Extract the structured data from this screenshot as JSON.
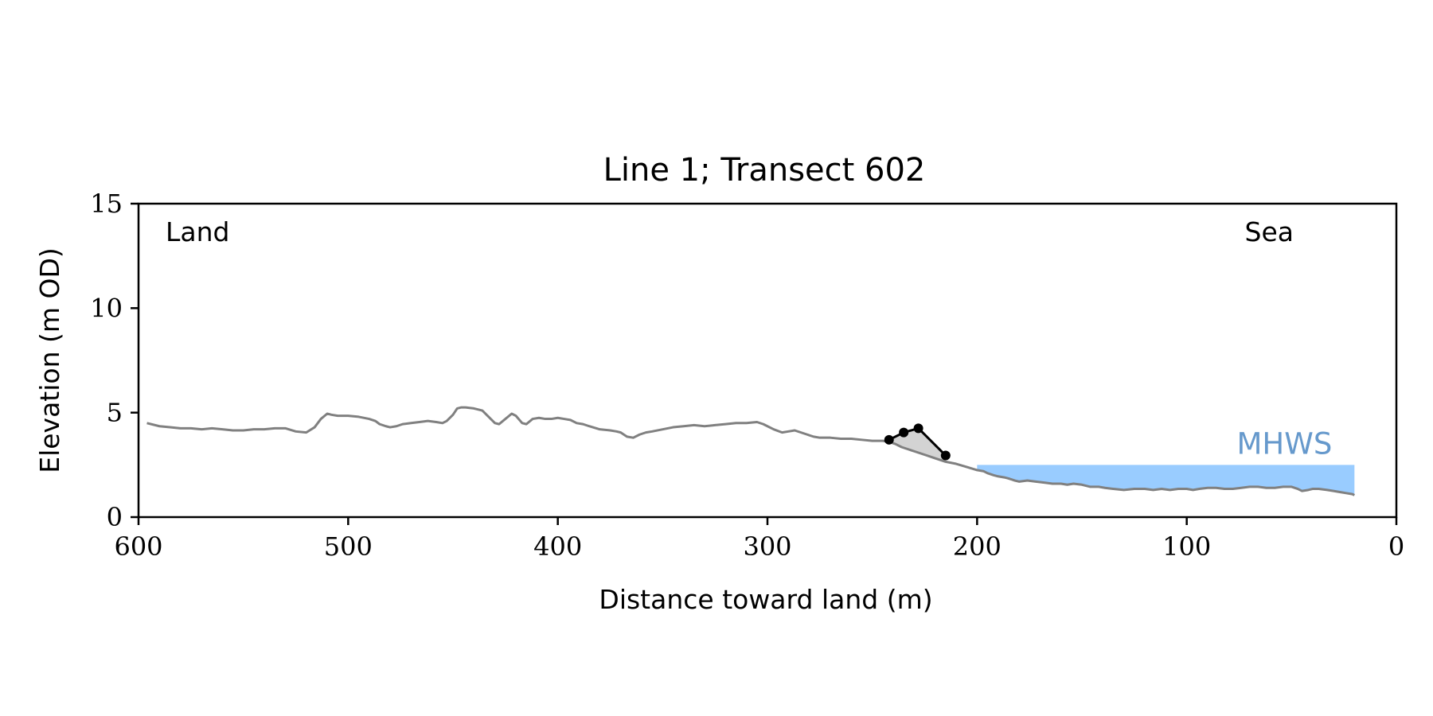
{
  "chart_data": {
    "type": "line",
    "title": "Line 1; Transect 602",
    "xlabel": "Distance toward land (m)",
    "ylabel": "Elevation (m OD)",
    "xlim": [
      600,
      0
    ],
    "ylim": [
      0,
      15
    ],
    "xticks": [
      600,
      500,
      400,
      300,
      200,
      100,
      0
    ],
    "yticks": [
      0,
      5,
      10,
      15
    ],
    "xtick_labels": [
      "600",
      "500",
      "400",
      "300",
      "200",
      "100",
      "0"
    ],
    "ytick_labels": [
      "0",
      "5",
      "10",
      "15"
    ],
    "grid": false,
    "annotations": {
      "land": "Land",
      "sea": "Sea",
      "mhws": "MHWS"
    },
    "colors": {
      "profile": "#808080",
      "feature": "#000000",
      "feature_fill": "#d3d3d3",
      "mhws_fill": "#99ccff",
      "mhws_text": "#6699cc"
    },
    "mhws": {
      "level": 2.5,
      "x_start": 200,
      "x_end": 20
    },
    "profile": {
      "x": [
        596,
        590,
        585,
        580,
        575,
        570,
        565,
        560,
        555,
        550,
        545,
        540,
        535,
        530,
        525,
        520,
        516,
        513,
        510,
        508,
        505,
        500,
        495,
        490,
        487,
        485,
        482,
        480,
        477,
        474,
        470,
        466,
        462,
        458,
        455,
        453,
        450,
        448,
        446,
        444,
        440,
        436,
        433,
        430,
        428,
        425,
        422,
        420,
        417,
        415,
        412,
        409,
        406,
        403,
        400,
        397,
        394,
        391,
        388,
        385,
        380,
        375,
        372,
        370,
        367,
        364,
        361,
        358,
        355,
        350,
        345,
        340,
        335,
        330,
        325,
        320,
        315,
        310,
        305,
        302,
        300,
        297,
        293,
        290,
        287,
        284,
        281,
        278,
        275,
        270,
        265,
        260,
        255,
        250,
        245,
        242,
        239,
        236,
        233,
        230,
        227,
        224,
        221,
        218,
        215,
        210,
        205,
        200,
        197,
        195,
        192,
        190,
        187,
        185,
        182,
        180,
        176,
        172,
        168,
        164,
        160,
        157,
        154,
        150,
        146,
        142,
        139,
        135,
        130,
        125,
        120,
        116,
        112,
        108,
        104,
        100,
        97,
        94,
        90,
        86,
        82,
        78,
        74,
        70,
        66,
        62,
        58,
        54,
        50,
        47,
        45,
        42,
        40,
        37,
        33,
        30,
        27,
        24,
        21,
        20
      ],
      "y": [
        4.5,
        4.35,
        4.3,
        4.25,
        4.25,
        4.2,
        4.25,
        4.2,
        4.15,
        4.15,
        4.2,
        4.2,
        4.25,
        4.25,
        4.1,
        4.05,
        4.3,
        4.7,
        4.95,
        4.9,
        4.85,
        4.85,
        4.8,
        4.7,
        4.6,
        4.45,
        4.35,
        4.3,
        4.35,
        4.45,
        4.5,
        4.55,
        4.6,
        4.55,
        4.5,
        4.6,
        4.9,
        5.2,
        5.25,
        5.25,
        5.2,
        5.1,
        4.8,
        4.5,
        4.45,
        4.7,
        4.95,
        4.85,
        4.5,
        4.45,
        4.7,
        4.75,
        4.7,
        4.7,
        4.75,
        4.7,
        4.65,
        4.5,
        4.45,
        4.35,
        4.2,
        4.15,
        4.1,
        4.05,
        3.85,
        3.8,
        3.95,
        4.05,
        4.1,
        4.2,
        4.3,
        4.35,
        4.4,
        4.35,
        4.4,
        4.45,
        4.5,
        4.5,
        4.55,
        4.45,
        4.35,
        4.2,
        4.05,
        4.1,
        4.15,
        4.05,
        3.95,
        3.85,
        3.8,
        3.8,
        3.75,
        3.75,
        3.7,
        3.65,
        3.65,
        3.6,
        3.5,
        3.35,
        3.25,
        3.15,
        3.05,
        2.95,
        2.85,
        2.75,
        2.65,
        2.55,
        2.4,
        2.25,
        2.2,
        2.1,
        2.0,
        1.95,
        1.9,
        1.85,
        1.75,
        1.7,
        1.75,
        1.7,
        1.65,
        1.6,
        1.6,
        1.55,
        1.6,
        1.55,
        1.45,
        1.45,
        1.4,
        1.35,
        1.3,
        1.35,
        1.35,
        1.3,
        1.35,
        1.3,
        1.35,
        1.35,
        1.3,
        1.35,
        1.4,
        1.4,
        1.35,
        1.35,
        1.4,
        1.45,
        1.45,
        1.4,
        1.4,
        1.45,
        1.45,
        1.35,
        1.25,
        1.3,
        1.35,
        1.35,
        1.3,
        1.25,
        1.2,
        1.15,
        1.1,
        1.05
      ]
    },
    "feature": {
      "x": [
        242,
        235,
        228,
        215
      ],
      "y": [
        3.7,
        4.05,
        4.25,
        2.95
      ]
    }
  }
}
